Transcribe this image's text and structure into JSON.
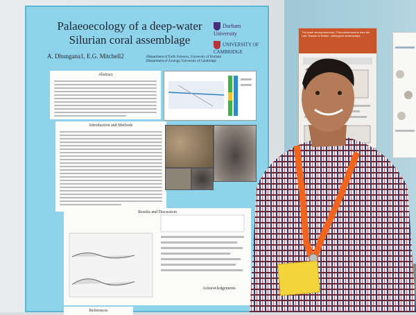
{
  "main_poster": {
    "title": "Palaeoecology of a deep-water Silurian coral assemblage",
    "authors": "A. Dhungana1, E.G. Mitchell2",
    "affiliations": [
      "1Department of Earth Sciences, University of Durham",
      "2Department of Zoology, University of Cambridge"
    ],
    "logo_durham": "Durham University",
    "logo_cambridge": "UNIVERSITY OF CAMBRIDGE",
    "sections": {
      "abstract": "Abstract",
      "intro": "Introduction and Methods",
      "results": "Results and Discussion",
      "acknowledgements": "Acknowledgements",
      "references": "References"
    }
  },
  "right_poster": {
    "title": "The fossil sauropodomorph Thecodontosaurus from the Late Triassic of Britain: ontological relationships, ..."
  },
  "colors": {
    "poster_bg": "#8ed3ea",
    "shirt_check": "#7a1e2c",
    "lanyard": "#f0641e",
    "badge": "#f3d43a"
  }
}
